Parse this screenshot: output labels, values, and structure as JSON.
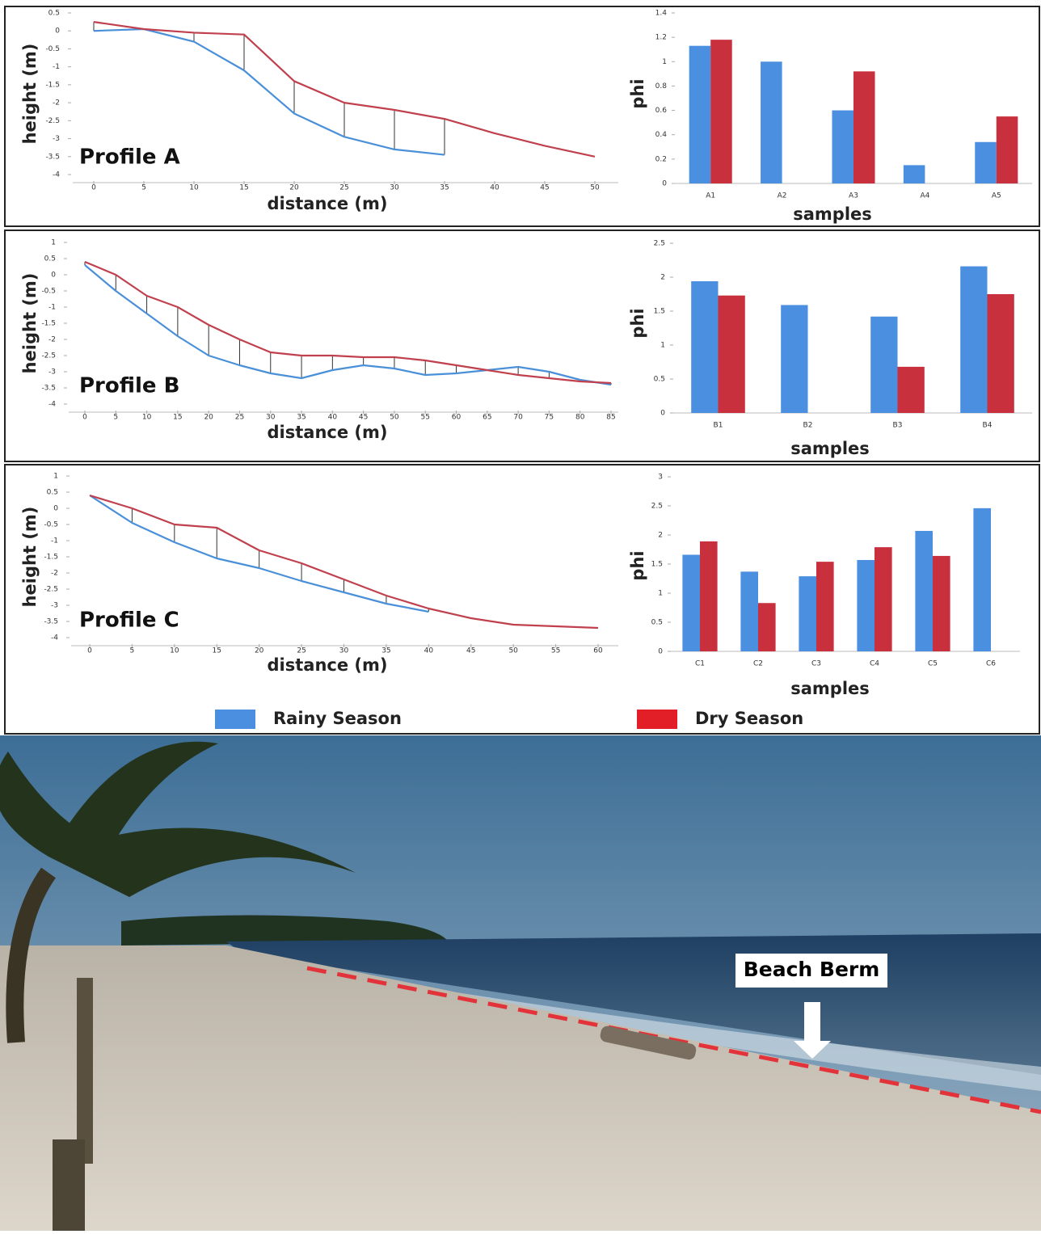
{
  "chart_data": [
    {
      "type": "line",
      "annotation": "Profile A",
      "x_label": "distance (m)",
      "y_label": "height (m)",
      "x": [
        0,
        5,
        10,
        15,
        20,
        25,
        30,
        35,
        40,
        45,
        50
      ],
      "xlim": [
        0,
        50
      ],
      "xticks": [
        0,
        5,
        10,
        15,
        20,
        25,
        30,
        35,
        40,
        45,
        50
      ],
      "ylim": [
        -4,
        0.5
      ],
      "yticks": [
        -4,
        -3.5,
        -3,
        -2.5,
        -2,
        -1.5,
        -1,
        -0.5,
        0,
        0.5
      ],
      "series": [
        {
          "name": "Rainy Season",
          "color": "#4a90d9",
          "values": [
            0,
            0.05,
            -0.3,
            -1.1,
            -2.3,
            -2.95,
            -3.3,
            -3.45,
            null,
            null,
            null
          ]
        },
        {
          "name": "Dry Season",
          "color": "#c0404e",
          "values": [
            0.25,
            0.05,
            -0.05,
            -0.1,
            -1.4,
            -2.0,
            -2.2,
            -2.45,
            -2.85,
            -3.2,
            -3.5
          ]
        }
      ]
    },
    {
      "type": "bar",
      "x_label": "samples",
      "y_label": "phi",
      "categories": [
        "A1",
        "A2",
        "A3",
        "A4",
        "A5"
      ],
      "ylim": [
        0,
        1.4
      ],
      "yticks": [
        0,
        0.2,
        0.4,
        0.6,
        0.8,
        1,
        1.2,
        1.4
      ],
      "series": [
        {
          "name": "Rainy Season",
          "color": "#4a8fe0",
          "values": [
            1.13,
            1.0,
            0.6,
            0.15,
            0.34
          ]
        },
        {
          "name": "Dry Season",
          "color": "#c8303d",
          "values": [
            1.18,
            null,
            0.92,
            null,
            0.55
          ]
        }
      ]
    },
    {
      "type": "line",
      "annotation": "Profile B",
      "x_label": "distance (m)",
      "y_label": "height (m)",
      "x": [
        0,
        5,
        10,
        15,
        20,
        25,
        30,
        35,
        40,
        45,
        50,
        55,
        60,
        65,
        70,
        75,
        80,
        85
      ],
      "xlim": [
        0,
        85
      ],
      "xticks": [
        0,
        5,
        10,
        15,
        20,
        25,
        30,
        35,
        40,
        45,
        50,
        55,
        60,
        65,
        70,
        75,
        80,
        85
      ],
      "ylim": [
        -4,
        1
      ],
      "yticks": [
        -4,
        -3.5,
        -3,
        -2.5,
        -2,
        -1.5,
        -1,
        -0.5,
        0,
        0.5,
        1
      ],
      "series": [
        {
          "name": "Rainy Season",
          "color": "#4a90d9",
          "values": [
            0.3,
            -0.5,
            -1.2,
            -1.9,
            -2.5,
            -2.8,
            -3.05,
            -3.2,
            -2.95,
            -2.8,
            -2.9,
            -3.1,
            -3.05,
            -2.95,
            -2.85,
            -3.0,
            -3.25,
            -3.4
          ]
        },
        {
          "name": "Dry Season",
          "color": "#c0404e",
          "values": [
            0.4,
            0.0,
            -0.65,
            -1.0,
            -1.55,
            -2.0,
            -2.4,
            -2.5,
            -2.5,
            -2.55,
            -2.55,
            -2.65,
            -2.8,
            -2.95,
            -3.1,
            -3.2,
            -3.3,
            -3.35
          ]
        }
      ]
    },
    {
      "type": "bar",
      "x_label": "samples",
      "y_label": "phi",
      "categories": [
        "B1",
        "B2",
        "B3",
        "B4"
      ],
      "ylim": [
        0,
        2.5
      ],
      "yticks": [
        0,
        0.5,
        1,
        1.5,
        2,
        2.5
      ],
      "series": [
        {
          "name": "Rainy Season",
          "color": "#4a8fe0",
          "values": [
            1.94,
            1.59,
            1.42,
            2.16
          ]
        },
        {
          "name": "Dry Season",
          "color": "#c8303d",
          "values": [
            1.73,
            null,
            0.68,
            1.75
          ]
        }
      ]
    },
    {
      "type": "line",
      "annotation": "Profile C",
      "x_label": "distance (m)",
      "y_label": "height (m)",
      "x": [
        0,
        5,
        10,
        15,
        20,
        25,
        30,
        35,
        40,
        45,
        50,
        55,
        60
      ],
      "xlim": [
        0,
        60
      ],
      "xticks": [
        0,
        5,
        10,
        15,
        20,
        25,
        30,
        35,
        40,
        45,
        50,
        55,
        60
      ],
      "ylim": [
        -4,
        1
      ],
      "yticks": [
        -4,
        -3.5,
        -3,
        -2.5,
        -2,
        -1.5,
        -1,
        -0.5,
        0,
        0.5,
        1
      ],
      "series": [
        {
          "name": "Rainy Season",
          "color": "#4a90d9",
          "values": [
            0.4,
            -0.45,
            -1.05,
            -1.55,
            -1.85,
            -2.25,
            -2.6,
            -2.95,
            -3.2,
            null,
            null,
            null,
            null
          ]
        },
        {
          "name": "Dry Season",
          "color": "#c0404e",
          "values": [
            0.4,
            0.0,
            -0.5,
            -0.6,
            -1.3,
            -1.7,
            -2.2,
            -2.7,
            -3.1,
            -3.4,
            -3.6,
            -3.65,
            -3.7
          ]
        }
      ]
    },
    {
      "type": "bar",
      "x_label": "samples",
      "y_label": "phi",
      "categories": [
        "C1",
        "C2",
        "C3",
        "C4",
        "C5",
        "C6"
      ],
      "ylim": [
        0,
        3
      ],
      "yticks": [
        0,
        0.5,
        1,
        1.5,
        2,
        2.5,
        3
      ],
      "series": [
        {
          "name": "Rainy Season",
          "color": "#4a8fe0",
          "values": [
            1.66,
            1.37,
            1.29,
            1.57,
            2.07,
            2.46
          ]
        },
        {
          "name": "Dry Season",
          "color": "#c8303d",
          "values": [
            1.89,
            0.83,
            1.54,
            1.79,
            1.64,
            null
          ]
        }
      ]
    }
  ],
  "photo": {
    "label": "Beach Berm"
  }
}
